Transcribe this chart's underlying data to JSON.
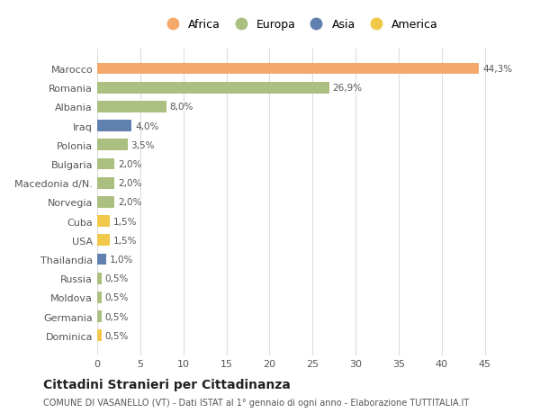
{
  "countries": [
    "Marocco",
    "Romania",
    "Albania",
    "Iraq",
    "Polonia",
    "Bulgaria",
    "Macedonia d/N.",
    "Norvegia",
    "Cuba",
    "USA",
    "Thailandia",
    "Russia",
    "Moldova",
    "Germania",
    "Dominica"
  ],
  "values": [
    44.3,
    26.9,
    8.0,
    4.0,
    3.5,
    2.0,
    2.0,
    2.0,
    1.5,
    1.5,
    1.0,
    0.5,
    0.5,
    0.5,
    0.5
  ],
  "labels": [
    "44,3%",
    "26,9%",
    "8,0%",
    "4,0%",
    "3,5%",
    "2,0%",
    "2,0%",
    "2,0%",
    "1,5%",
    "1,5%",
    "1,0%",
    "0,5%",
    "0,5%",
    "0,5%",
    "0,5%"
  ],
  "continents": [
    "Africa",
    "Europa",
    "Europa",
    "Asia",
    "Europa",
    "Europa",
    "Europa",
    "Europa",
    "America",
    "America",
    "Asia",
    "Europa",
    "Europa",
    "Europa",
    "America"
  ],
  "colors": {
    "Africa": "#F4A96B",
    "Europa": "#AABF80",
    "Asia": "#6080B0",
    "America": "#F0C84A"
  },
  "title": "Cittadini Stranieri per Cittadinanza",
  "subtitle": "COMUNE DI VASANELLO (VT) - Dati ISTAT al 1° gennaio di ogni anno - Elaborazione TUTTITALIA.IT",
  "xlim": [
    0,
    47
  ],
  "background_color": "#ffffff",
  "grid_color": "#dddddd",
  "legend_order": [
    "Africa",
    "Europa",
    "Asia",
    "America"
  ]
}
